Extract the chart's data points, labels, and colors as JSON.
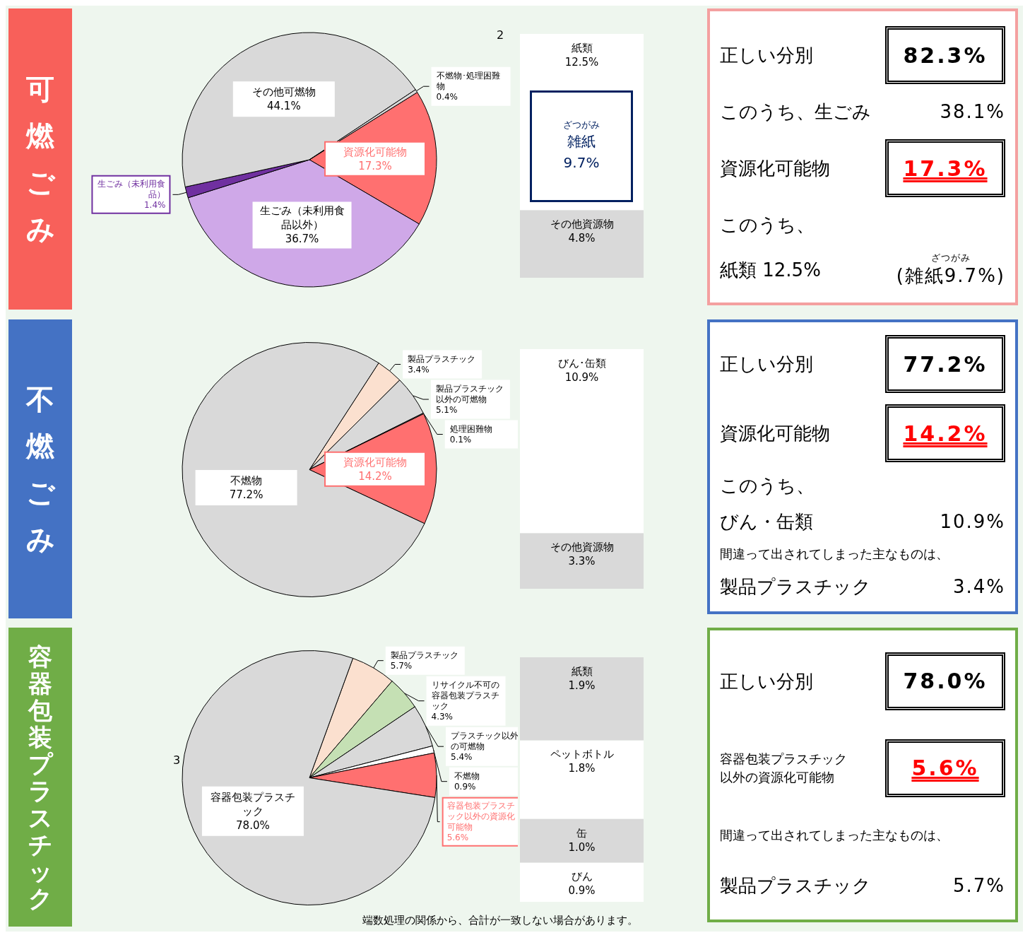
{
  "chart_data": [
    {
      "type": "pie",
      "title": "可燃ごみ",
      "categories": [
        "資源化可能物",
        "生ごみ（未利用食品以外）",
        "生ごみ（未利用食品）",
        "その他可燃物",
        "不燃物･処理困難物"
      ],
      "values": [
        17.3,
        36.7,
        1.4,
        44.1,
        0.4
      ],
      "value_labels": [
        "17.3%",
        "36.7%",
        "1.4%",
        "44.1%",
        "0.4%"
      ],
      "colors": [
        "#ff7070",
        "#cfa8e8",
        "#7030a0",
        "#d9d9d9",
        "#d9d9d9"
      ],
      "annotations": [
        "2"
      ]
    },
    {
      "type": "bar",
      "stacked": true,
      "categories": [
        null
      ],
      "tick_labels": false,
      "series": [
        {
          "name": "その他資源物",
          "color": "#d9d9d9",
          "values": [
            4.8
          ],
          "value_labels": [
            "4.8%"
          ]
        },
        {
          "name": "紙類",
          "color": "#ffffff",
          "values": [
            12.5
          ],
          "value_labels": [
            "12.5%"
          ]
        }
      ],
      "annotations": [
        "ざつがみ",
        "雑紙",
        "9.7%"
      ]
    },
    {
      "type": "other",
      "annotations": [
        "正しい分別",
        "82.3%",
        "このうち、生ごみ",
        "38.1%",
        "資源化可能物",
        "17.3%",
        "このうち、",
        "紙類 12.5%",
        "ざつがみ",
        "(雑紙9.7%)"
      ]
    },
    {
      "type": "pie",
      "title": "不燃ごみ",
      "categories": [
        "製品プラスチック",
        "製品プラスチック以外の可燃物",
        "処理困難物",
        "資源化可能物",
        "不燃物"
      ],
      "values": [
        3.4,
        5.1,
        0.1,
        14.2,
        77.2
      ],
      "value_labels": [
        "3.4%",
        "5.1%",
        "0.1%",
        "14.2%",
        "77.2%"
      ],
      "colors": [
        "#fbe0cf",
        "#d9d9d9",
        "#d9d9d9",
        "#ff7070",
        "#d9d9d9"
      ]
    },
    {
      "type": "bar",
      "stacked": true,
      "categories": [
        null
      ],
      "tick_labels": false,
      "series": [
        {
          "name": "その他資源物",
          "color": "#d9d9d9",
          "values": [
            3.3
          ],
          "value_labels": [
            "3.3%"
          ]
        },
        {
          "name": "びん･缶類",
          "color": "#ffffff",
          "values": [
            10.9
          ],
          "value_labels": [
            "10.9%"
          ]
        }
      ]
    },
    {
      "type": "other",
      "annotations": [
        "正しい分別",
        "77.2%",
        "資源化可能物",
        "14.2%",
        "このうち、",
        "びん・缶類",
        "10.9%",
        "間違って出されてしまった主なものは、",
        "製品プラスチック",
        "3.4%"
      ]
    },
    {
      "type": "pie",
      "title": "容器包装プラスチック",
      "categories": [
        "製品プラスチック",
        "リサイクル不可の容器包装プラスチック",
        "プラスチック以外の可燃物",
        "不燃物",
        "容器包装プラスチック以外の資源化可能物",
        "容器包装プラスチック"
      ],
      "values": [
        5.7,
        4.3,
        5.4,
        0.9,
        5.6,
        78.0
      ],
      "value_labels": [
        "5.7%",
        "4.3%",
        "5.4%",
        "0.9%",
        "5.6%",
        "78.0%"
      ],
      "colors": [
        "#fbe0cf",
        "#c5e0b4",
        "#d9d9d9",
        "#ffffff",
        "#ff7070",
        "#d9d9d9"
      ],
      "annotations": [
        "3",
        "端数処理の関係から、合計が一致しない場合があります。"
      ]
    },
    {
      "type": "bar",
      "stacked": true,
      "categories": [
        null
      ],
      "tick_labels": false,
      "series": [
        {
          "name": "びん",
          "color": "#ffffff",
          "values": [
            0.9
          ],
          "value_labels": [
            "0.9%"
          ]
        },
        {
          "name": "缶",
          "color": "#d9d9d9",
          "values": [
            1.0
          ],
          "value_labels": [
            "1.0%"
          ]
        },
        {
          "name": "ペットボトル",
          "color": "#ffffff",
          "values": [
            1.8
          ],
          "value_labels": [
            "1.8%"
          ]
        },
        {
          "name": "紙類",
          "color": "#d9d9d9",
          "values": [
            1.9
          ],
          "value_labels": [
            "1.9%"
          ]
        }
      ]
    },
    {
      "type": "other",
      "annotations": [
        "正しい分別",
        "78.0%",
        "容器包装プラスチック以外の資源化可能物",
        "5.6%",
        "間違って出されてしまった主なものは、",
        "製品プラスチック",
        "5.7%"
      ]
    }
  ]
}
